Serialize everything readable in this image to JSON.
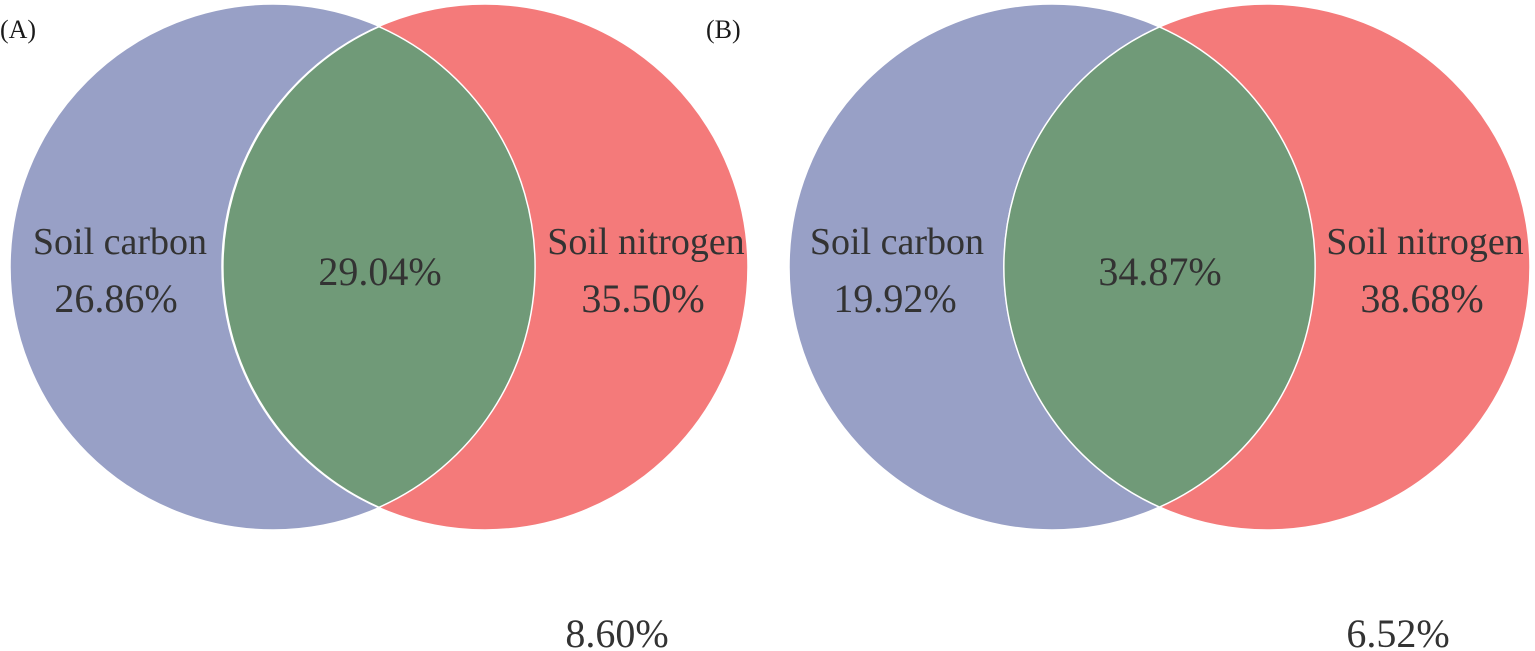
{
  "panels": [
    {
      "label": "(A)",
      "carbon": {
        "name": "Soil carbon",
        "value": "26.86%"
      },
      "nitrogen": {
        "name": "Soil nitrogen",
        "value": "35.50%"
      },
      "overlap": {
        "value": "29.04%"
      },
      "outside": {
        "value": "8.60%"
      }
    },
    {
      "label": "(B)",
      "carbon": {
        "name": "Soil carbon",
        "value": "19.92%"
      },
      "nitrogen": {
        "name": "Soil nitrogen",
        "value": "38.68%"
      },
      "overlap": {
        "value": "34.87%"
      },
      "outside": {
        "value": "6.52%"
      }
    }
  ],
  "colors": {
    "carbon": "#98a0c6",
    "nitrogen": "#f47a7a",
    "overlap": "#709a78"
  }
}
